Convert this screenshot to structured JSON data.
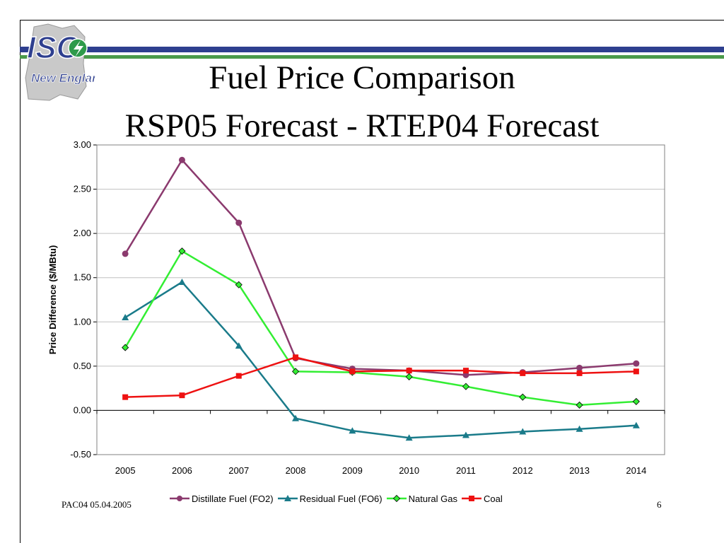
{
  "slide": {
    "title_line1": "Fuel Price Comparison",
    "title_line2": "RSP05 Forecast - RTEP04 Forecast",
    "footer_left": "PAC04 05.04.2005",
    "page_number": "6",
    "logo_top": "ISO",
    "logo_bottom": "New England"
  },
  "colors": {
    "band_blue": "#2e3f8f",
    "band_green": "#4a9a4a"
  },
  "chart_data": {
    "type": "line",
    "ylabel": "Price Difference ($/MBtu)",
    "xlabel": "",
    "x": [
      "2005",
      "2006",
      "2007",
      "2008",
      "2009",
      "2010",
      "2011",
      "2012",
      "2013",
      "2014"
    ],
    "ylim": [
      -0.5,
      3.0
    ],
    "yticks": [
      "-0.50",
      "0.00",
      "0.50",
      "1.00",
      "1.50",
      "2.00",
      "2.50",
      "3.00"
    ],
    "grid": true,
    "legend_position": "bottom",
    "series": [
      {
        "name": "Distillate Fuel (FO2)",
        "color": "#8b3a6e",
        "marker": "circle",
        "values": [
          1.77,
          2.83,
          2.12,
          0.59,
          0.47,
          0.45,
          0.4,
          0.43,
          0.48,
          0.53
        ]
      },
      {
        "name": "Residual Fuel (FO6)",
        "color": "#1a7b8a",
        "marker": "triangle",
        "values": [
          1.05,
          1.45,
          0.73,
          -0.09,
          -0.23,
          -0.31,
          -0.28,
          -0.24,
          -0.21,
          -0.17
        ]
      },
      {
        "name": "Natural Gas",
        "color": "#33ee33",
        "marker": "diamond",
        "values": [
          0.71,
          1.8,
          1.42,
          0.44,
          0.43,
          0.38,
          0.27,
          0.15,
          0.06,
          0.1
        ]
      },
      {
        "name": "Coal",
        "color": "#ee1111",
        "marker": "square",
        "values": [
          0.15,
          0.17,
          0.39,
          0.6,
          0.44,
          0.45,
          0.45,
          0.42,
          0.42,
          0.44
        ]
      }
    ]
  }
}
